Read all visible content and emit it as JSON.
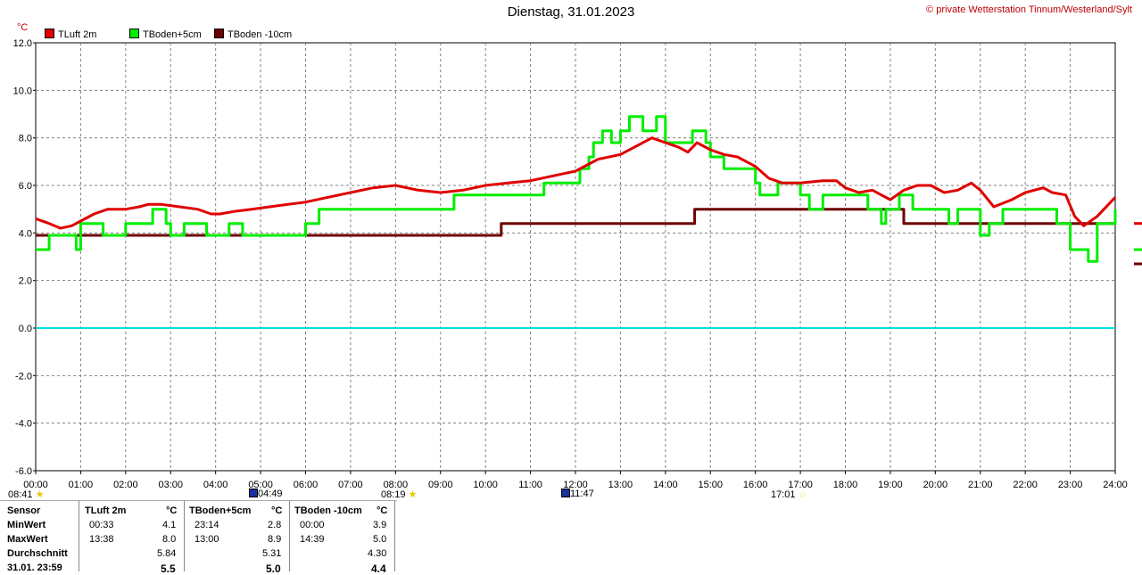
{
  "title": "Dienstag, 31.01.2023",
  "copyright": "© private Wetterstation Tinnum/Westerland/Sylt",
  "unit": "°C",
  "colors": {
    "tluft": "#e00000",
    "tboden5": "#00ee00",
    "tboden10": "#6e0000",
    "zero": "#00e0e0",
    "grid": "#808080"
  },
  "legend": [
    {
      "label": "TLuft 2m",
      "color": "#e00000"
    },
    {
      "label": "TBoden+5cm",
      "color": "#00ee00"
    },
    {
      "label": "TBoden -10cm",
      "color": "#6e0000"
    }
  ],
  "sun_markers": {
    "sunrise": "08:41",
    "moonset": "04:49",
    "day_mark": "08:19",
    "moonrise": "11:47",
    "sunset": "17:01"
  },
  "stats": {
    "header": {
      "sensor": "Sensor",
      "c1": "TLuft 2m",
      "c2": "TBoden+5cm",
      "c3": "TBoden -10cm",
      "unit": "°C"
    },
    "rows": [
      {
        "label": "MinWert",
        "t1": "00:33",
        "v1": "4.1",
        "t2": "23:14",
        "v2": "2.8",
        "t3": "00:00",
        "v3": "3.9"
      },
      {
        "label": "MaxWert",
        "t1": "13:38",
        "v1": "8.0",
        "t2": "13:00",
        "v2": "8.9",
        "t3": "14:39",
        "v3": "5.0"
      },
      {
        "label": "Durchschnitt",
        "t1": "",
        "v1": "5.84",
        "t2": "",
        "v2": "5.31",
        "t3": "",
        "v3": "4.30"
      },
      {
        "label": "31.01. 23:59",
        "t1": "",
        "v1": "5.5",
        "t2": "",
        "v2": "5.0",
        "t3": "",
        "v3": "4.4"
      }
    ]
  },
  "chart_data": {
    "type": "line",
    "title": "Dienstag, 31.01.2023",
    "ylabel": "°C",
    "xlabel": "",
    "ylim": [
      -6,
      12
    ],
    "xlim": [
      0,
      24
    ],
    "grid": true,
    "legend_placement": "top-left",
    "y_ticks": [
      "12.0",
      "10.0",
      "8.0",
      "6.0",
      "4.0",
      "2.0",
      "0.0",
      "-2.0",
      "-4.0",
      "-6.0"
    ],
    "x_ticks": [
      "00:00",
      "01:00",
      "02:00",
      "03:00",
      "04:00",
      "05:00",
      "06:00",
      "07:00",
      "08:00",
      "09:00",
      "10:00",
      "11:00",
      "12:00",
      "13:00",
      "14:00",
      "15:00",
      "16:00",
      "17:00",
      "18:00",
      "19:00",
      "20:00",
      "21:00",
      "22:00",
      "23:00",
      "24:00"
    ],
    "series": [
      {
        "name": "TLuft 2m",
        "color": "#e00000",
        "x": [
          0,
          0.3,
          0.55,
          0.8,
          1.0,
          1.3,
          1.6,
          2.0,
          2.3,
          2.5,
          2.8,
          3.2,
          3.6,
          3.9,
          4.1,
          4.4,
          4.8,
          5.2,
          5.6,
          6.0,
          6.5,
          7.0,
          7.5,
          8.0,
          8.5,
          9.0,
          9.5,
          10.0,
          10.5,
          11.0,
          11.5,
          12.0,
          12.3,
          12.5,
          13.0,
          13.4,
          13.7,
          14.0,
          14.3,
          14.5,
          14.7,
          15.0,
          15.3,
          15.6,
          16.0,
          16.3,
          16.6,
          17.0,
          17.5,
          17.8,
          18.0,
          18.3,
          18.6,
          18.8,
          19.0,
          19.3,
          19.6,
          19.9,
          20.2,
          20.5,
          20.8,
          21.0,
          21.3,
          21.7,
          22.0,
          22.4,
          22.6,
          22.9,
          23.1,
          23.3,
          23.6,
          24.0
        ],
        "y": [
          4.6,
          4.4,
          4.2,
          4.3,
          4.5,
          4.8,
          5.0,
          5.0,
          5.1,
          5.2,
          5.2,
          5.1,
          5.0,
          4.8,
          4.8,
          4.9,
          5.0,
          5.1,
          5.2,
          5.3,
          5.5,
          5.7,
          5.9,
          6.0,
          5.8,
          5.7,
          5.8,
          6.0,
          6.1,
          6.2,
          6.4,
          6.6,
          6.9,
          7.1,
          7.3,
          7.7,
          8.0,
          7.8,
          7.6,
          7.4,
          7.8,
          7.5,
          7.3,
          7.2,
          6.8,
          6.3,
          6.1,
          6.1,
          6.2,
          6.2,
          5.9,
          5.7,
          5.8,
          5.6,
          5.4,
          5.8,
          6.0,
          6.0,
          5.7,
          5.8,
          6.1,
          5.8,
          5.1,
          5.4,
          5.7,
          5.9,
          5.7,
          5.6,
          4.7,
          4.3,
          4.7,
          5.5
        ]
      },
      {
        "name": "TBoden+5cm",
        "color": "#00ee00",
        "x": [
          0,
          0.25,
          0.3,
          0.9,
          1.0,
          1.5,
          2.0,
          2.4,
          2.6,
          2.9,
          3.0,
          3.3,
          3.5,
          3.8,
          4.1,
          4.3,
          4.6,
          5.0,
          5.4,
          6.0,
          6.3,
          7.0,
          8.0,
          9.0,
          9.3,
          10.0,
          11.0,
          11.3,
          11.6,
          12.0,
          12.1,
          12.3,
          12.4,
          12.6,
          12.8,
          13.0,
          13.2,
          13.5,
          13.8,
          14.0,
          14.3,
          14.6,
          14.9,
          15.0,
          15.3,
          15.6,
          16.0,
          16.1,
          16.3,
          16.5,
          17.0,
          17.2,
          17.5,
          17.8,
          18.0,
          18.5,
          18.8,
          18.9,
          19.2,
          19.5,
          19.8,
          20.0,
          20.3,
          20.5,
          20.8,
          21.0,
          21.2,
          21.5,
          22.0,
          22.5,
          22.7,
          23.0,
          23.2,
          23.4,
          23.6,
          24.0
        ],
        "y": [
          3.3,
          3.3,
          3.9,
          3.3,
          4.4,
          3.9,
          4.4,
          4.4,
          5.0,
          4.4,
          3.9,
          4.4,
          4.4,
          3.9,
          3.9,
          4.4,
          3.9,
          3.9,
          3.9,
          4.4,
          5.0,
          5.0,
          5.0,
          5.0,
          5.6,
          5.6,
          5.6,
          6.1,
          6.1,
          6.1,
          6.7,
          7.2,
          7.8,
          8.3,
          7.8,
          8.3,
          8.9,
          8.3,
          8.9,
          7.8,
          7.8,
          8.3,
          7.8,
          7.2,
          6.7,
          6.7,
          6.1,
          5.6,
          5.6,
          6.1,
          5.6,
          5.0,
          5.6,
          5.6,
          5.6,
          5.0,
          4.4,
          5.0,
          5.6,
          5.0,
          5.0,
          5.0,
          4.4,
          5.0,
          5.0,
          3.9,
          4.4,
          5.0,
          5.0,
          5.0,
          4.4,
          3.3,
          3.3,
          2.8,
          4.4,
          5.0
        ]
      },
      {
        "name": "TBoden -10cm",
        "color": "#6e0000",
        "x": [
          0,
          10.35,
          10.35,
          14.65,
          14.65,
          19.3,
          19.3,
          24.0
        ],
        "y": [
          3.9,
          3.9,
          4.4,
          4.4,
          5.0,
          5.0,
          4.4,
          4.4
        ]
      },
      {
        "name": "",
        "color": "#00e0e0",
        "x": [
          0,
          24
        ],
        "y": [
          0,
          0
        ]
      }
    ]
  }
}
